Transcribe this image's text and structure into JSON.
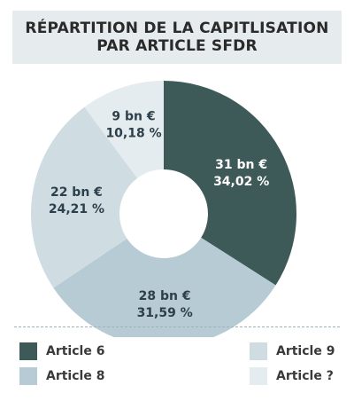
{
  "title": {
    "line1": "RÉPARTITION DE LA CAPITLISATION",
    "line2": "PAR ARTICLE SFDR"
  },
  "chart_data": {
    "type": "pie",
    "donut": true,
    "title": "RÉPARTITION DE LA CAPITLISATION PAR ARTICLE SFDR",
    "unit": "bn €",
    "slices": [
      {
        "name": "Article 6",
        "value": 31,
        "value_label": "31 bn €",
        "percent": 34.02,
        "percent_label": "34,02 %",
        "color": "#3d5a59",
        "text_color": "#ffffff"
      },
      {
        "name": "Article 8",
        "value": 28,
        "value_label": "28 bn €",
        "percent": 31.59,
        "percent_label": "31,59 %",
        "color": "#b6cbd4",
        "text_color": "#2d3f4a"
      },
      {
        "name": "Article 9",
        "value": 22,
        "value_label": "22 bn €",
        "percent": 24.21,
        "percent_label": "24,21 %",
        "color": "#cfdde3",
        "text_color": "#2d3f4a"
      },
      {
        "name": "Article ?",
        "value": 9,
        "value_label": "9 bn €",
        "percent": 10.18,
        "percent_label": "10,18 %",
        "color": "#e4ecef",
        "text_color": "#2d3f4a"
      }
    ],
    "legend": [
      {
        "name": "Article 6",
        "color": "#3d5a59"
      },
      {
        "name": "Article 8",
        "color": "#b6cbd4"
      },
      {
        "name": "Article 9",
        "color": "#cfdde3"
      },
      {
        "name": "Article ?",
        "color": "#e4ecef"
      }
    ],
    "legend_placement": "bottom"
  }
}
